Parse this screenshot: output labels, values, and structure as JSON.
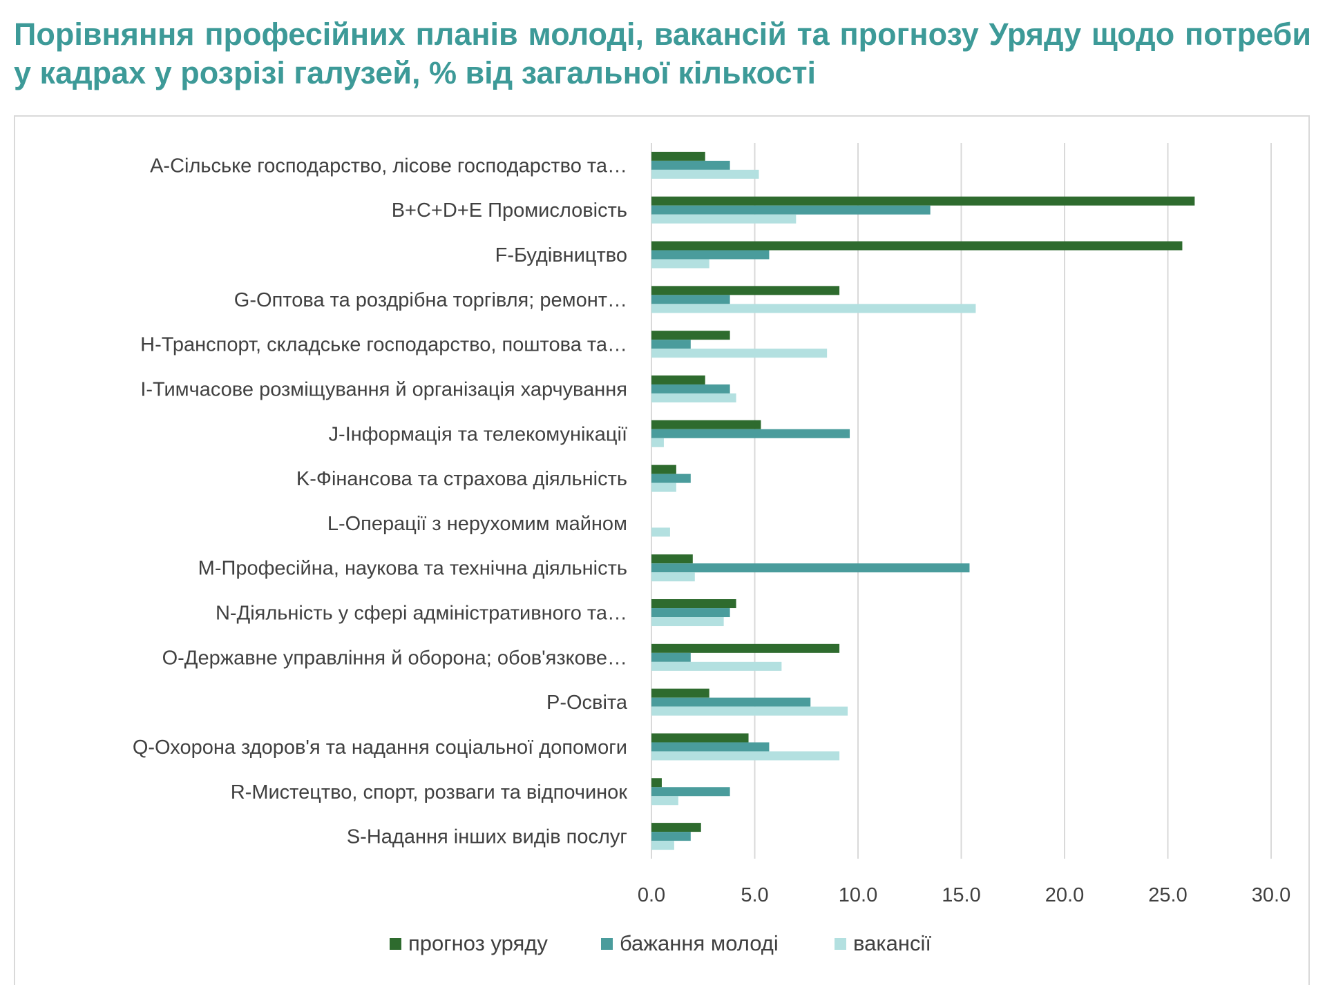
{
  "title": "Порівняння професійних планів молоді, вакансій та прогнозу Уряду щодо потреби у кадрах у розрізі  галузей, % від загальної кількості",
  "colors": {
    "title": "#3d9a98",
    "series": [
      "#2e6b2e",
      "#4a9c9c",
      "#b3e0e0"
    ],
    "grid": "#d9d9d9",
    "text": "#404040"
  },
  "chart_data": {
    "type": "bar",
    "orientation": "horizontal",
    "title": "Порівняння професійних планів молоді, вакансій та прогнозу Уряду щодо потреби у кадрах у розрізі  галузей, % від загальної кількості",
    "xlabel": "",
    "ylabel": "",
    "xlim": [
      0,
      30
    ],
    "ticks": [
      "0.0",
      "5.0",
      "10.0",
      "15.0",
      "20.0",
      "25.0",
      "30.0"
    ],
    "grid": "vertical",
    "legend_position": "bottom",
    "categories": [
      "A-Сільське господарство, лісове господарство та…",
      "B+C+D+E Промисловість",
      "F-Будівництво",
      "G-Оптова та роздрібна торгівля; ремонт…",
      "H-Транспорт, складське господарство, поштова та…",
      "I-Тимчасове розміщування й організація харчування",
      "J-Інформація та телекомунікації",
      "K-Фінансова та страхова діяльність",
      "L-Операції з нерухомим майном",
      "M-Професійна, наукова та технічна діяльність",
      "N-Діяльність у сфері адміністративного та…",
      "O-Державне управління й оборона; обов'язкове…",
      "P-Освіта",
      "Q-Охорона здоров'я та надання соціальної допомоги",
      "R-Мистецтво, спорт, розваги та відпочинок",
      "S-Надання інших видів послуг"
    ],
    "series": [
      {
        "name": "прогноз уряду",
        "color": "#2e6b2e",
        "values": [
          2.6,
          26.3,
          25.7,
          9.1,
          3.8,
          2.6,
          5.3,
          1.2,
          0.0,
          2.0,
          4.1,
          9.1,
          2.8,
          4.7,
          0.5,
          2.4
        ]
      },
      {
        "name": "бажання молоді",
        "color": "#4a9c9c",
        "values": [
          3.8,
          13.5,
          5.7,
          3.8,
          1.9,
          3.8,
          9.6,
          1.9,
          0.0,
          15.4,
          3.8,
          1.9,
          7.7,
          5.7,
          3.8,
          1.9
        ]
      },
      {
        "name": "вакансії",
        "color": "#b3e0e0",
        "values": [
          5.2,
          7.0,
          2.8,
          15.7,
          8.5,
          4.1,
          0.6,
          1.2,
          0.9,
          2.1,
          3.5,
          6.3,
          9.5,
          9.1,
          1.3,
          1.1
        ]
      }
    ]
  }
}
